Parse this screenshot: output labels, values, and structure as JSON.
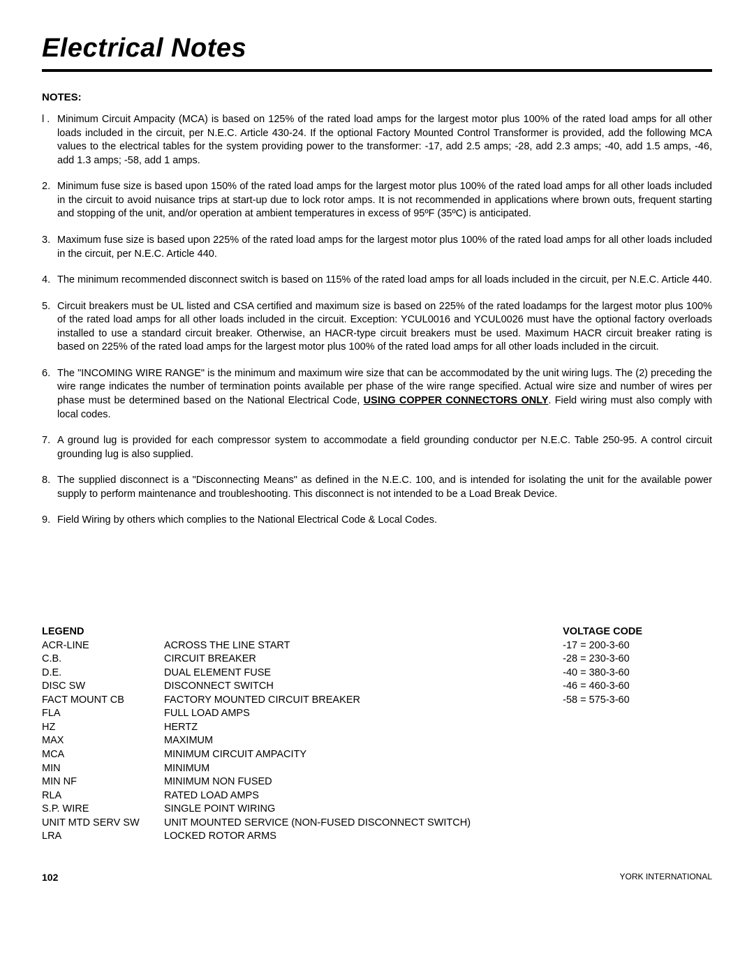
{
  "title": "Electrical Notes",
  "notesHeading": "NOTES:",
  "notes": [
    {
      "num": "l .",
      "text": "Minimum Circuit Ampacity (MCA) is based on 125% of the rated load amps for the largest motor plus 100% of the rated load amps for all other loads included in the circuit, per N.E.C. Article 430-24. If the optional Factory Mounted Control Transformer is provided, add the following MCA values to the electrical tables for the system providing power to the transformer: -17, add 2.5 amps; -28, add 2.3 amps; -40, add 1.5 amps, -46, add 1.3 amps; -58, add 1 amps."
    },
    {
      "num": "2.",
      "text": "Minimum fuse size is based upon 150% of the rated load amps for the largest motor plus 100% of the rated load amps for all other loads included in the circuit to avoid nuisance trips at start-up due to lock rotor amps. It is not recommended in applications where brown outs, frequent starting and stopping of the unit, and/or operation at ambient temperatures in excess of 95ºF (35ºC) is anticipated."
    },
    {
      "num": "3.",
      "text": "Maximum fuse size is based upon 225% of the rated load amps for the largest motor plus 100% of the rated load amps for all other loads included in the circuit, per N.E.C. Article 440."
    },
    {
      "num": "4.",
      "text": "The minimum recommended disconnect switch is based on 115% of the rated load amps for all loads included in the circuit, per N.E.C. Article 440."
    },
    {
      "num": "5.",
      "text": "Circuit breakers must be UL listed and CSA certified and maximum size is based on 225% of the rated loadamps for the largest motor plus 100% of the rated load amps for all other loads included in the circuit. Exception: YCUL0016 and YCUL0026 must have the optional factory overloads installed to use a standard circuit breaker. Otherwise, an HACR-type circuit breakers must be used. Maximum HACR circuit breaker rating is based on 225% of the rated load amps for the largest motor plus 100% of the rated load amps for all other loads included in the circuit."
    },
    {
      "num": "6.",
      "special": true
    },
    {
      "num": "7.",
      "text": "A ground lug is provided for each compressor system to accommodate a field grounding conductor per N.E.C. Table 250-95. A control circuit grounding lug is also supplied."
    },
    {
      "num": "8.",
      "text": "The supplied disconnect is a \"Disconnecting Means\" as defined in the N.E.C. 100, and is intended for isolating the unit for the available power supply to perform maintenance and troubleshooting. This disconnect is not intended to be a Load Break Device."
    },
    {
      "num": "9.",
      "text": "Field Wiring by others which complies to the National Electrical Code & Local Codes."
    }
  ],
  "note6": {
    "pre": "The \"INCOMING WIRE RANGE\" is the minimum and maximum wire size that can be accommodated by the unit wiring lugs. The (2) preceding the wire range indicates the number of termination points available per phase of the wire range specified. Actual wire size and number of wires per phase must be determined based on the National Electrical Code, ",
    "bold1": "USING COPPER CONNECTORS ONLY",
    "post": ". Field wiring must also comply with local codes."
  },
  "legendHeading": "LEGEND",
  "legend": [
    {
      "k": "ACR-LINE",
      "v": "ACROSS  THE LINE START"
    },
    {
      "k": "C.B.",
      "v": "CIRCUIT BREAKER"
    },
    {
      "k": "D.E.",
      "v": "DUAL ELEMENT FUSE"
    },
    {
      "k": "DISC SW",
      "v": "DISCONNECT SWITCH"
    },
    {
      "k": "FACT MOUNT CB",
      "v": "FACTORY MOUNTED CIRCUIT BREAKER"
    },
    {
      "k": "FLA",
      "v": "FULL LOAD AMPS"
    },
    {
      "k": "HZ",
      "v": "HERTZ"
    },
    {
      "k": "MAX",
      "v": "MAXIMUM"
    },
    {
      "k": "MCA",
      "v": "MINIMUM CIRCUIT AMPACITY"
    },
    {
      "k": "MIN",
      "v": "MINIMUM"
    },
    {
      "k": "MIN NF",
      "v": "MINIMUM NON FUSED"
    },
    {
      "k": "RLA",
      "v": "RATED LOAD AMPS"
    },
    {
      "k": "S.P. WIRE",
      "v": "SINGLE POINT WIRING"
    },
    {
      "k": "UNIT MTD SERV SW",
      "v": "UNIT MOUNTED SERVICE (NON-FUSED DISCONNECT SWITCH)"
    },
    {
      "k": "LRA",
      "v": "LOCKED ROTOR ARMS"
    }
  ],
  "voltageHeading": "VOLTAGE CODE",
  "voltage": [
    "-17 = 200-3-60",
    "-28 = 230-3-60",
    "-40 = 380-3-60",
    "-46 = 460-3-60",
    "-58 = 575-3-60"
  ],
  "footer": {
    "page": "102",
    "publisher": "YORK INTERNATIONAL"
  },
  "colors": {
    "background": "#ffffff",
    "text": "#000000",
    "rule": "#000000"
  },
  "typography": {
    "title_fontsize": 38,
    "body_fontsize": 14.5,
    "heading_fontsize": 15,
    "font_family": "Arial"
  }
}
